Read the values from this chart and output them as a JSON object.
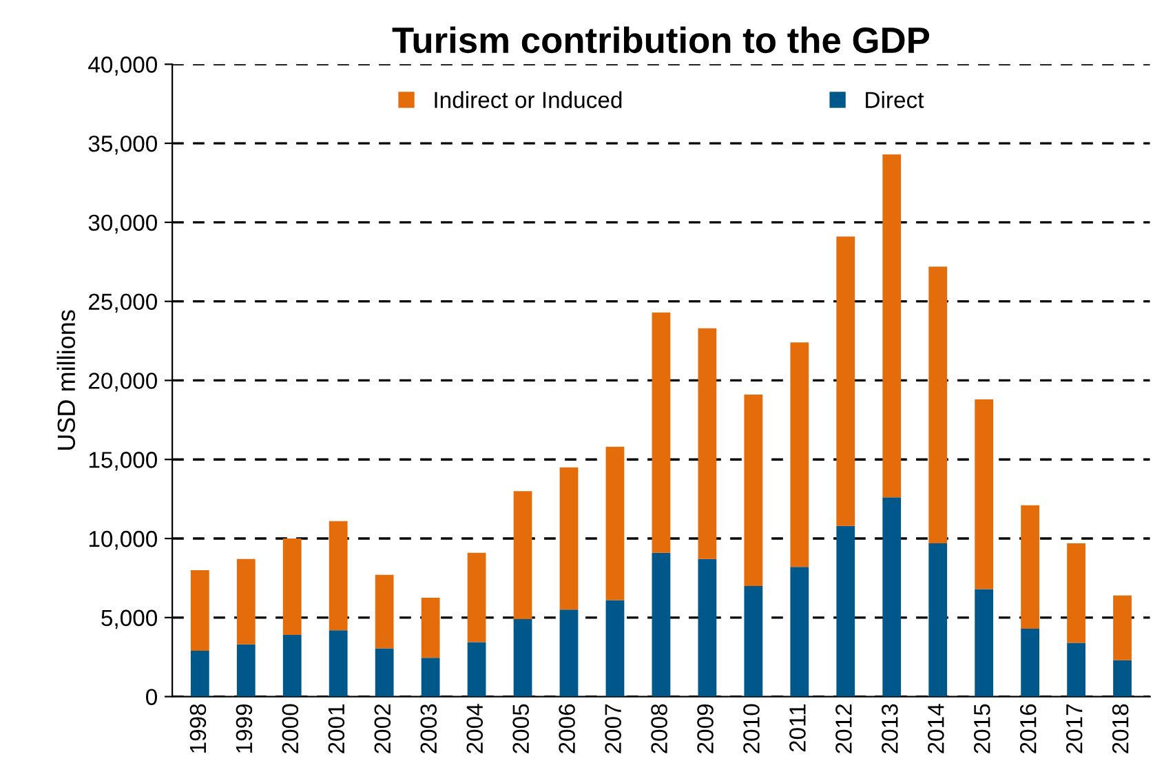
{
  "chart_data": {
    "type": "bar",
    "title": "Turism contribution to the GDP",
    "ylabel": "USD millions",
    "stacked": true,
    "categories": [
      "1998",
      "1999",
      "2000",
      "2001",
      "2002",
      "2003",
      "2004",
      "2005",
      "2006",
      "2007",
      "2008",
      "2009",
      "2010",
      "2011",
      "2012",
      "2013",
      "2014",
      "2015",
      "2016",
      "2017",
      "2018"
    ],
    "series": [
      {
        "name": "Direct",
        "color": "#00578a",
        "values": [
          2900,
          3300,
          3900,
          4200,
          3050,
          2450,
          3450,
          4900,
          5500,
          6100,
          9100,
          8700,
          7000,
          8200,
          10800,
          12600,
          9700,
          6800,
          4300,
          3400,
          2300
        ]
      },
      {
        "name": "Indirect or Induced",
        "color": "#e46c0a",
        "values": [
          5100,
          5400,
          6100,
          6900,
          4650,
          3800,
          5650,
          8100,
          9000,
          9700,
          15200,
          14600,
          12100,
          14200,
          18300,
          21700,
          17500,
          12000,
          7800,
          6300,
          4100
        ]
      }
    ],
    "ylim": [
      0,
      40000
    ],
    "yticks": [
      {
        "value": 0,
        "label": "0"
      },
      {
        "value": 5000,
        "label": "5,000"
      },
      {
        "value": 10000,
        "label": "10,000"
      },
      {
        "value": 15000,
        "label": "15,000"
      },
      {
        "value": 20000,
        "label": "20,000"
      },
      {
        "value": 25000,
        "label": "25,000"
      },
      {
        "value": 30000,
        "label": "30,000"
      },
      {
        "value": 35000,
        "label": "35,000"
      },
      {
        "value": 40000,
        "label": "40,000"
      }
    ],
    "grid": "y",
    "legend": "top"
  }
}
